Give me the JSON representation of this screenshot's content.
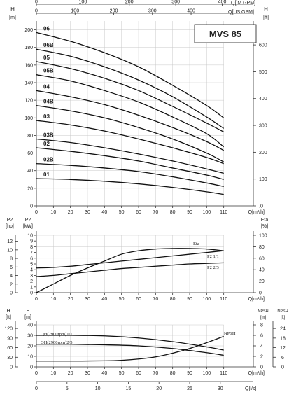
{
  "model": "MVS 85",
  "top_axes": {
    "imperial_label": "Q[IM.GPM]",
    "imperial_ticks": [
      "0",
      "100",
      "200",
      "300",
      "400"
    ],
    "imperial_values": [
      0,
      100,
      200,
      300,
      400
    ],
    "us_label": "Q[US.GPM]",
    "us_ticks": [
      "0",
      "100",
      "200",
      "300",
      "400"
    ],
    "us_values": [
      0,
      100,
      200,
      300,
      400
    ]
  },
  "bottom_axis": {
    "label": "Q[l/s]",
    "ticks": [
      "0",
      "5",
      "10",
      "15",
      "20",
      "25",
      "30"
    ],
    "values": [
      0,
      5,
      10,
      15,
      20,
      25,
      30
    ]
  },
  "chart_data": [
    {
      "type": "line",
      "name": "head",
      "xlabel": "Q[m³/h]",
      "ylabel_left": "H [m]",
      "ylabel_right": "H [ft]",
      "xlim": [
        0,
        120
      ],
      "ylim": [
        0,
        210
      ],
      "x_ticks": [
        0,
        10,
        20,
        30,
        40,
        50,
        60,
        70,
        80,
        90,
        100,
        110
      ],
      "y_ticks": [
        0,
        20,
        40,
        60,
        80,
        100,
        120,
        140,
        160,
        180,
        200
      ],
      "y_right_ticks": [
        ".0",
        "100",
        "200",
        "300",
        "400",
        "500",
        "600"
      ],
      "y_right_values": [
        0,
        100,
        200,
        300,
        400,
        500,
        600
      ],
      "grid": true,
      "series": [
        {
          "name": "06",
          "x": [
            0,
            20,
            40,
            60,
            80,
            100,
            110
          ],
          "y": [
            197,
            187,
            174,
            158,
            137,
            114,
            100
          ]
        },
        {
          "name": "06B",
          "x": [
            0,
            20,
            40,
            60,
            80,
            100,
            110
          ],
          "y": [
            178,
            170,
            158,
            143,
            124,
            101,
            88
          ]
        },
        {
          "name": "05",
          "x": [
            0,
            20,
            40,
            60,
            80,
            100,
            110
          ],
          "y": [
            164,
            156,
            145,
            131,
            113,
            94,
            84
          ]
        },
        {
          "name": "05B",
          "x": [
            0,
            20,
            40,
            60,
            80,
            100,
            110
          ],
          "y": [
            149,
            142,
            131,
            118,
            101,
            82,
            67
          ]
        },
        {
          "name": "04",
          "x": [
            0,
            20,
            40,
            60,
            80,
            100,
            110
          ],
          "y": [
            131,
            124,
            115,
            103,
            89,
            73,
            63
          ]
        },
        {
          "name": "04B",
          "x": [
            0,
            20,
            40,
            60,
            80,
            100,
            110
          ],
          "y": [
            114,
            108,
            100,
            89,
            76,
            60,
            50
          ]
        },
        {
          "name": "03",
          "x": [
            0,
            20,
            40,
            60,
            80,
            100,
            110
          ],
          "y": [
            97,
            92,
            85,
            76,
            66,
            55,
            48
          ]
        },
        {
          "name": "03B",
          "x": [
            0,
            20,
            40,
            60,
            80,
            100,
            110
          ],
          "y": [
            76,
            72,
            66,
            59,
            51,
            42,
            37
          ]
        },
        {
          "name": "02",
          "x": [
            0,
            20,
            40,
            60,
            80,
            100,
            110
          ],
          "y": [
            66,
            62,
            57,
            51,
            43,
            35,
            30
          ]
        },
        {
          "name": "02B",
          "x": [
            0,
            20,
            40,
            60,
            80,
            100,
            110
          ],
          "y": [
            48,
            46,
            43,
            39,
            33,
            26,
            22
          ]
        },
        {
          "name": "01",
          "x": [
            0,
            20,
            40,
            60,
            80,
            100,
            110
          ],
          "y": [
            31,
            30,
            28,
            25,
            21,
            16,
            13
          ]
        }
      ]
    },
    {
      "type": "line",
      "name": "power-efficiency",
      "xlabel": "Q[m³/h]",
      "ylabel_left_hp": "P2 [hp]",
      "ylabel_left_kw": "P2 [kW]",
      "ylabel_right": "Eta [%]",
      "xlim": [
        0,
        120
      ],
      "ylim": [
        0,
        10
      ],
      "x_ticks": [
        0,
        10,
        20,
        30,
        40,
        50,
        60,
        70,
        80,
        90,
        100,
        110
      ],
      "kw_ticks": [
        0,
        1,
        2,
        3,
        4,
        5,
        6,
        7,
        8,
        9,
        10
      ],
      "hp_ticks": [
        0,
        2,
        4,
        6,
        8,
        10,
        12
      ],
      "eta_ticks": [
        0,
        20,
        40,
        60,
        80,
        100
      ],
      "grid": true,
      "series": [
        {
          "name": "Eta",
          "axis": "eta",
          "x": [
            0,
            10,
            20,
            30,
            40,
            50,
            60,
            70,
            80,
            90,
            100,
            110
          ],
          "y": [
            0,
            15,
            30,
            43,
            55,
            67,
            73,
            76,
            77,
            77,
            76,
            73
          ]
        },
        {
          "name": "P2 1/1",
          "axis": "kw",
          "x": [
            0,
            10,
            20,
            30,
            40,
            50,
            60,
            70,
            80,
            90,
            100,
            110
          ],
          "y": [
            4.3,
            4.4,
            4.6,
            4.9,
            5.2,
            5.5,
            5.8,
            6.1,
            6.4,
            6.7,
            7.0,
            7.3
          ]
        },
        {
          "name": "P2 2/3",
          "axis": "kw",
          "x": [
            0,
            10,
            20,
            30,
            40,
            50,
            60,
            70,
            80,
            90,
            100,
            110
          ],
          "y": [
            2.8,
            3.0,
            3.3,
            3.6,
            3.9,
            4.2,
            4.4,
            4.6,
            4.8,
            5.0,
            5.1,
            5.2
          ]
        }
      ]
    },
    {
      "type": "line",
      "name": "qh-npsh",
      "xlabel": "Q[m³/h]",
      "ylabel_left": "H [m]",
      "ylabel_ft": "H [ft]",
      "ylabel_npsh_m": "NPSH [m]",
      "ylabel_npsh_ft": "NPSH [ft]",
      "xlim": [
        0,
        120
      ],
      "ylim": [
        0,
        40
      ],
      "x_ticks": [
        0,
        10,
        20,
        30,
        40,
        50,
        60,
        70,
        80,
        90,
        100,
        110
      ],
      "y_ticks": [
        0,
        10,
        20,
        30,
        40
      ],
      "ft_ticks": [
        0,
        30,
        60,
        90,
        120
      ],
      "npsh_m_ticks": [
        0,
        2,
        4,
        6,
        8
      ],
      "npsh_ft_ticks": [
        0,
        6,
        12,
        18,
        24
      ],
      "grid": true,
      "series": [
        {
          "name": "QH(2900rpm)1/1",
          "axis": "h",
          "x": [
            0,
            20,
            40,
            60,
            80,
            100,
            110
          ],
          "y": [
            30,
            30,
            29.5,
            27.5,
            24,
            19,
            16
          ]
        },
        {
          "name": "QH(2900rpm)2/3",
          "axis": "h",
          "x": [
            0,
            20,
            40,
            60,
            80,
            100,
            110
          ],
          "y": [
            21.5,
            21.5,
            21,
            20,
            17.5,
            13.5,
            11
          ]
        },
        {
          "name": "NPSH",
          "axis": "npsh",
          "x": [
            0,
            20,
            40,
            50,
            60,
            70,
            80,
            90,
            100,
            110
          ],
          "y": [
            1.1,
            1.1,
            1.15,
            1.25,
            1.5,
            1.9,
            2.6,
            3.5,
            4.6,
            5.8
          ]
        }
      ]
    }
  ]
}
